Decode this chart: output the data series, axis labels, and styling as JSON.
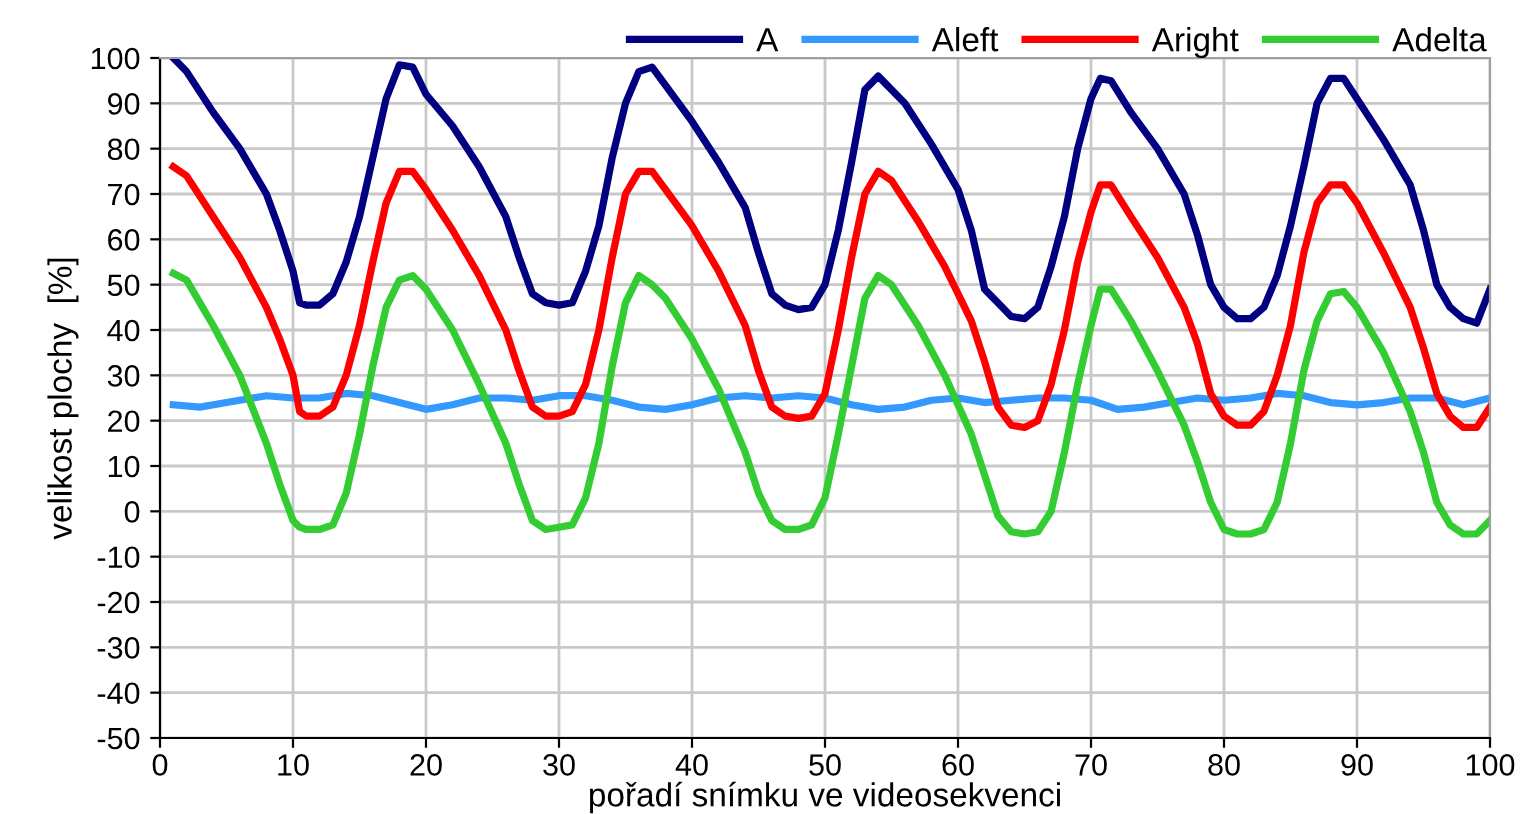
{
  "chart_data": {
    "type": "line",
    "xlabel": "pořadí snímku ve videosekvenci",
    "ylabel": "velikost plochy  [%]",
    "xlim": [
      0,
      100
    ],
    "ylim": [
      -50,
      100
    ],
    "xticks": [
      0,
      10,
      20,
      30,
      40,
      50,
      60,
      70,
      80,
      90,
      100
    ],
    "yticks": [
      -50,
      -40,
      -30,
      -20,
      -10,
      0,
      10,
      20,
      30,
      40,
      50,
      60,
      70,
      80,
      90,
      100
    ],
    "grid": true,
    "legend": "top right",
    "marker": "none",
    "line_style": "solid",
    "series": [
      {
        "name": "A",
        "color": "#000080",
        "x": [
          1,
          2,
          4,
          6,
          8,
          9,
          10,
          10.5,
          11,
          12,
          13,
          14,
          15,
          16,
          17,
          18,
          19,
          20,
          22,
          24,
          26,
          27,
          28,
          29,
          30,
          31,
          32,
          33,
          34,
          35,
          36,
          37,
          38,
          40,
          42,
          44,
          45,
          46,
          47,
          48,
          49,
          50,
          51,
          52,
          53,
          54,
          56,
          58,
          60,
          61,
          62,
          63,
          64,
          65,
          66,
          67,
          68,
          69,
          70,
          70.7,
          71.5,
          73,
          75,
          77,
          78,
          79,
          80,
          81,
          82,
          83,
          84,
          85,
          86,
          87,
          88,
          89,
          90,
          92,
          94,
          95,
          96,
          97,
          98,
          99,
          100
        ],
        "values": [
          100,
          97,
          88,
          80,
          70,
          62,
          53,
          46,
          45.5,
          45.5,
          48,
          55,
          65,
          78,
          91,
          98.5,
          98,
          92,
          85,
          76,
          65,
          56,
          48,
          46,
          45.5,
          46,
          53,
          63,
          78,
          90,
          97,
          98,
          94,
          86,
          77,
          67,
          57,
          48,
          45.5,
          44.5,
          45,
          50,
          62,
          77,
          93,
          96,
          90,
          81,
          71,
          62,
          49,
          46,
          43,
          42.5,
          45,
          54,
          65,
          80,
          91,
          95.5,
          95,
          88,
          80,
          70,
          61,
          50,
          45,
          42.5,
          42.5,
          45,
          52,
          63,
          76,
          90,
          95.5,
          95.5,
          91,
          82,
          72,
          62,
          50,
          45,
          42.5,
          41.5,
          49
        ]
      },
      {
        "name": "Aleft",
        "color": "#3399ff",
        "x": [
          1,
          3,
          5,
          8,
          10,
          12,
          14,
          16,
          18,
          20,
          22,
          24,
          26,
          28,
          30,
          32,
          34,
          36,
          38,
          40,
          42,
          44,
          46,
          48,
          50,
          52,
          54,
          56,
          58,
          60,
          62,
          64,
          66,
          68,
          70,
          72,
          74,
          76,
          78,
          80,
          82,
          84,
          86,
          88,
          90,
          92,
          94,
          96,
          98,
          100
        ],
        "values": [
          23.5,
          23,
          24,
          25.5,
          25,
          25,
          26,
          25.5,
          24,
          22.5,
          23.5,
          25,
          25,
          24.5,
          25.5,
          25.5,
          24.5,
          23,
          22.5,
          23.5,
          25,
          25.5,
          25,
          25.5,
          25,
          23.5,
          22.5,
          23,
          24.5,
          25,
          24,
          24.5,
          25,
          25,
          24.5,
          22.5,
          23,
          24,
          25,
          24.5,
          25,
          26,
          25.5,
          24,
          23.5,
          24,
          25,
          25,
          23.5,
          25
        ]
      },
      {
        "name": "Aright",
        "color": "#ff0000",
        "x": [
          1,
          2,
          4,
          6,
          8,
          9,
          10,
          10.5,
          11,
          12,
          13,
          14,
          15,
          16,
          17,
          18,
          19,
          20,
          22,
          24,
          26,
          27,
          28,
          29,
          30,
          31,
          32,
          33,
          34,
          35,
          36,
          37,
          38,
          40,
          42,
          44,
          45,
          46,
          47,
          48,
          49,
          50,
          51,
          52,
          53,
          54,
          55,
          57,
          59,
          61,
          62,
          63,
          64,
          65,
          66,
          67,
          68,
          69,
          70,
          70.7,
          71.5,
          73,
          75,
          77,
          78,
          79,
          80,
          81,
          82,
          83,
          84,
          85,
          86,
          87,
          88,
          89,
          90,
          92,
          94,
          95,
          96,
          97,
          98,
          99,
          100
        ],
        "values": [
          76,
          74,
          65,
          56,
          45,
          38,
          30,
          22,
          21,
          21,
          23,
          30,
          41,
          55,
          68,
          75,
          75,
          71,
          62,
          52,
          40,
          31,
          23,
          21,
          21,
          22,
          28,
          40,
          56,
          70,
          75,
          75,
          71,
          63,
          53,
          41,
          31,
          23,
          21,
          20.5,
          21,
          26,
          40,
          56,
          70,
          75,
          73,
          64,
          54,
          42,
          33,
          23,
          19,
          18.5,
          20,
          28,
          40,
          55,
          66,
          72,
          72,
          65,
          56,
          45,
          37,
          26,
          21,
          19,
          19,
          22,
          30,
          41,
          57,
          68,
          72,
          72,
          68,
          57,
          45,
          36,
          26,
          21,
          18.5,
          18.5,
          23
        ]
      },
      {
        "name": "Adelta",
        "color": "#33cc33",
        "x": [
          1,
          2,
          4,
          6,
          8,
          9,
          10,
          10.5,
          11,
          12,
          13,
          14,
          15,
          16,
          17,
          18,
          19,
          20,
          22,
          24,
          26,
          27,
          28,
          29,
          30,
          31,
          32,
          33,
          34,
          35,
          36,
          37,
          38,
          40,
          42,
          44,
          45,
          46,
          47,
          48,
          49,
          50,
          51,
          52,
          53,
          54,
          55,
          57,
          59,
          61,
          62,
          63,
          64,
          65,
          66,
          67,
          68,
          69,
          70,
          70.7,
          71.5,
          73,
          75,
          77,
          78,
          79,
          80,
          81,
          82,
          83,
          84,
          85,
          86,
          87,
          88,
          89,
          90,
          92,
          94,
          95,
          96,
          97,
          98,
          99,
          100
        ],
        "values": [
          52.5,
          51,
          41,
          30,
          15,
          6,
          -2,
          -3.5,
          -4,
          -4,
          -3,
          4,
          17,
          32,
          45,
          51,
          52,
          49,
          40,
          28,
          15,
          6,
          -2,
          -4,
          -3.5,
          -3,
          3,
          15,
          32,
          46,
          52,
          50,
          47,
          38,
          27,
          13,
          4,
          -2,
          -4,
          -4,
          -3,
          3,
          17,
          32,
          47,
          52,
          50,
          41,
          30,
          17,
          8,
          -1,
          -4.5,
          -5,
          -4.5,
          0,
          13,
          28,
          41,
          49,
          49,
          42,
          31,
          19,
          11,
          2,
          -4,
          -5,
          -5,
          -4,
          2,
          15,
          31,
          42,
          48,
          48.5,
          45,
          35,
          22,
          13,
          2,
          -3,
          -5,
          -5,
          -2
        ]
      }
    ]
  }
}
